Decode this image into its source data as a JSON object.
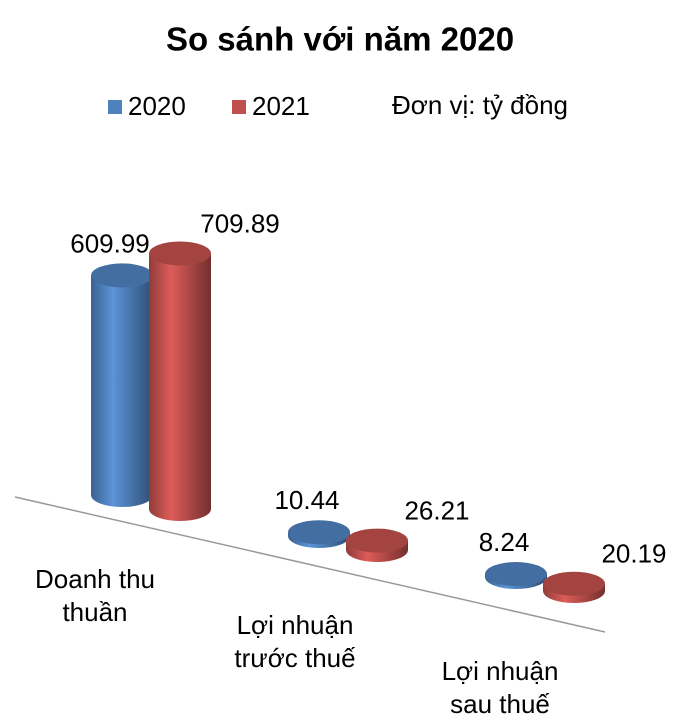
{
  "chart_data": {
    "type": "bar3d",
    "title": "So sánh với năm 2020",
    "unit": "Đơn vị: tỷ đồng",
    "categories": [
      "Doanh thu thuần",
      "Lợi nhuận trước thuế",
      "Lợi nhuận sau thuế"
    ],
    "series": [
      {
        "name": "2020",
        "color": "#4f81bd",
        "values": [
          609.99,
          10.44,
          8.24
        ]
      },
      {
        "name": "2021",
        "color": "#c0504d",
        "values": [
          709.89,
          26.21,
          20.19
        ]
      }
    ],
    "legend": "top"
  }
}
